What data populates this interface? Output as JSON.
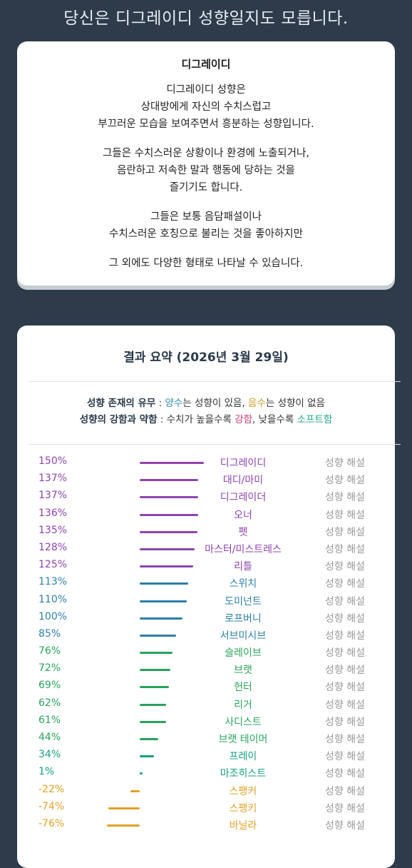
{
  "header": {
    "title": "당신은 디그레이디 성향일지도 모릅니다."
  },
  "description": {
    "title": "디그레이디",
    "paragraphs": [
      [
        "디그레이디 성향은",
        "상대방에게 자신의 수치스럽고",
        "부끄러운 모습을 보여주면서 흥분하는 성향입니다."
      ],
      [
        "그들은 수치스러운 상황이나 환경에 노출되거나,",
        "음란하고 저속한 말과 행동에 당하는 것을",
        "즐기기도 합니다."
      ],
      [
        "그들은 보통 음담패설이나",
        "수치스러운 호칭으로 불리는 것을 좋아하지만"
      ],
      [
        "그 외에도 다양한 형태로 나타날 수 있습니다."
      ]
    ]
  },
  "summary": {
    "title": "결과 요약 (2026년 3월 29일)",
    "legend_line1": {
      "label": "성향 존재의 유무",
      "sep": " : ",
      "pos_word": "양수",
      "pos_text": "는 성향이 있음, ",
      "neg_word": "음수",
      "neg_text": "는 성향이 없음"
    },
    "legend_line2": {
      "label": "성향의 강함과 약함",
      "sep": " : 수치가 높을수록 ",
      "hard_word": "강함",
      "mid": ", 낮을수록 ",
      "soft_word": "소프트함"
    },
    "link_label": "성향 해설",
    "colors": {
      "purple": "#8e44ad",
      "blue": "#2e7fa6",
      "green": "#27a35a",
      "teal": "#16a085",
      "orange": "#e0a126"
    },
    "rows": [
      {
        "pct": "150%",
        "value": 150,
        "name": "디그레이디",
        "color": "purple"
      },
      {
        "pct": "137%",
        "value": 137,
        "name": "대디/마미",
        "color": "purple"
      },
      {
        "pct": "137%",
        "value": 137,
        "name": "디그레이더",
        "color": "purple"
      },
      {
        "pct": "136%",
        "value": 136,
        "name": "오너",
        "color": "purple"
      },
      {
        "pct": "135%",
        "value": 135,
        "name": "펫",
        "color": "purple"
      },
      {
        "pct": "128%",
        "value": 128,
        "name": "마스터/미스트레스",
        "color": "purple"
      },
      {
        "pct": "125%",
        "value": 125,
        "name": "리틀",
        "color": "purple"
      },
      {
        "pct": "113%",
        "value": 113,
        "name": "스위치",
        "color": "blue"
      },
      {
        "pct": "110%",
        "value": 110,
        "name": "도미넌트",
        "color": "blue"
      },
      {
        "pct": "100%",
        "value": 100,
        "name": "로프버니",
        "color": "blue"
      },
      {
        "pct": "85%",
        "value": 85,
        "name": "서브미시브",
        "color": "blue"
      },
      {
        "pct": "76%",
        "value": 76,
        "name": "슬레이브",
        "color": "green"
      },
      {
        "pct": "72%",
        "value": 72,
        "name": "브랫",
        "color": "green"
      },
      {
        "pct": "69%",
        "value": 69,
        "name": "헌터",
        "color": "green"
      },
      {
        "pct": "62%",
        "value": 62,
        "name": "리거",
        "color": "green"
      },
      {
        "pct": "61%",
        "value": 61,
        "name": "사디스트",
        "color": "green"
      },
      {
        "pct": "44%",
        "value": 44,
        "name": "브랫 테이머",
        "color": "green"
      },
      {
        "pct": "34%",
        "value": 34,
        "name": "프레이",
        "color": "teal"
      },
      {
        "pct": "1%",
        "value": 1,
        "name": "마조히스트",
        "color": "teal"
      },
      {
        "pct": "-22%",
        "value": -22,
        "name": "스팽커",
        "color": "orange"
      },
      {
        "pct": "-74%",
        "value": -74,
        "name": "스팽키",
        "color": "orange"
      },
      {
        "pct": "-76%",
        "value": -76,
        "name": "바닐라",
        "color": "orange"
      }
    ]
  }
}
